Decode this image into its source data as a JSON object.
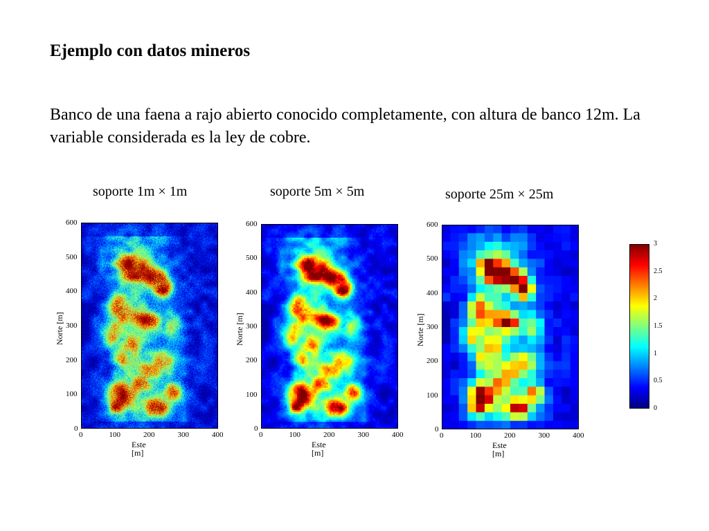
{
  "slide": {
    "title": "Ejemplo con datos mineros",
    "description": "Banco de una faena a rajo abierto conocido completamente, con altura de banco 12m. La variable considerada es la ley de cobre."
  },
  "panels": [
    {
      "label": "soporte 1m × 1m",
      "xlabel": "Este [m]",
      "ylabel": "Norte [m]",
      "xticks": [
        "0",
        "100",
        "200",
        "300",
        "400"
      ],
      "yticks": [
        "0",
        "100",
        "200",
        "300",
        "400",
        "500",
        "600"
      ],
      "block_m": 1
    },
    {
      "label": "soporte 5m × 5m",
      "xlabel": "Este [m]",
      "ylabel": "Norte [m]",
      "xticks": [
        "0",
        "100",
        "200",
        "300",
        "400"
      ],
      "yticks": [
        "0",
        "100",
        "200",
        "300",
        "400",
        "500",
        "600"
      ],
      "block_m": 5
    },
    {
      "label": "soporte 25m × 25m",
      "xlabel": "Este [m]",
      "ylabel": "Norte [m]",
      "xticks": [
        "0",
        "100",
        "200",
        "300",
        "400"
      ],
      "yticks": [
        "0",
        "100",
        "200",
        "300",
        "400",
        "500",
        "600"
      ],
      "block_m": 25
    }
  ],
  "colorbar": {
    "ticks": [
      "0",
      "0.5",
      "1",
      "1.5",
      "2",
      "2.5",
      "3"
    ],
    "range": [
      0,
      3
    ],
    "colormap": "jet"
  },
  "chart_data": [
    {
      "type": "heatmap",
      "title": "soporte 1m × 1m",
      "xlabel": "Este [m]",
      "ylabel": "Norte [m]",
      "xlim": [
        0,
        400
      ],
      "ylim": [
        0,
        600
      ],
      "zlim": [
        0,
        3
      ],
      "cell_size_m": 1
    },
    {
      "type": "heatmap",
      "title": "soporte 5m × 5m",
      "xlabel": "Este [m]",
      "ylabel": "Norte [m]",
      "xlim": [
        0,
        400
      ],
      "ylim": [
        0,
        600
      ],
      "zlim": [
        0,
        3
      ],
      "cell_size_m": 5
    },
    {
      "type": "heatmap",
      "title": "soporte 25m × 25m",
      "xlabel": "Este [m]",
      "ylabel": "Norte [m]",
      "xlim": [
        0,
        400
      ],
      "ylim": [
        0,
        600
      ],
      "zlim": [
        0,
        3
      ],
      "cell_size_m": 25
    }
  ]
}
